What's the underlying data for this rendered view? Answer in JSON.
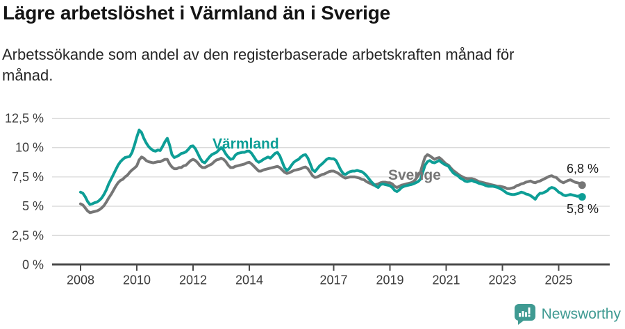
{
  "header": {
    "title": "Lägre arbetslöshet i Värmland än i Sverige",
    "subtitle": "Arbetssökande som andel av den registerbaserade arbetskraften månad för\nmånad."
  },
  "chart_data": {
    "type": "line",
    "title": "Lägre arbetslöshet i Värmland än i Sverige",
    "unit": "%",
    "grid": true,
    "legend_position": "inline-labels",
    "x_axis": {
      "start_year": 2008,
      "end_year_fraction": 2025.92,
      "tick_years": [
        2008,
        2010,
        2012,
        2014,
        2017,
        2019,
        2021,
        2023,
        2025
      ],
      "tick_labels": [
        "2008",
        "2010",
        "2012",
        "2014",
        "2017",
        "2019",
        "2021",
        "2023",
        "2025"
      ]
    },
    "y_axis": {
      "range": [
        0,
        12.5
      ],
      "tick_values": [
        0,
        2.5,
        5,
        7.5,
        10,
        12.5
      ],
      "tick_labels": [
        "0 %",
        "2,5 %",
        "5 %",
        "7,5 %",
        "10 %",
        "12,5 %"
      ]
    },
    "series": [
      {
        "name": "Värmland",
        "color": "#0D9E96",
        "end_label": "5,8 %",
        "start_year": 2008,
        "monthly_values": [
          6.2,
          6.1,
          5.8,
          5.4,
          5.15,
          5.2,
          5.3,
          5.35,
          5.5,
          5.7,
          6.0,
          6.4,
          6.9,
          7.3,
          7.7,
          8.1,
          8.5,
          8.8,
          9.0,
          9.15,
          9.2,
          9.25,
          9.6,
          10.2,
          10.9,
          11.5,
          11.3,
          10.8,
          10.4,
          10.1,
          9.9,
          9.75,
          9.7,
          9.8,
          9.75,
          10.1,
          10.5,
          10.8,
          10.2,
          9.4,
          9.15,
          9.25,
          9.35,
          9.5,
          9.55,
          9.65,
          9.85,
          10.1,
          10.15,
          9.9,
          9.5,
          9.1,
          8.8,
          8.7,
          8.95,
          9.2,
          9.4,
          9.5,
          9.6,
          9.8,
          10.0,
          9.8,
          9.45,
          9.2,
          9.0,
          9.05,
          9.35,
          9.5,
          9.55,
          9.6,
          9.6,
          9.7,
          9.7,
          9.5,
          9.2,
          8.9,
          8.75,
          8.85,
          9.0,
          9.1,
          9.2,
          9.1,
          9.3,
          9.5,
          9.6,
          9.3,
          8.8,
          8.3,
          8.05,
          8.2,
          8.5,
          8.75,
          8.9,
          9.0,
          9.2,
          9.35,
          9.4,
          9.1,
          8.6,
          8.1,
          7.95,
          8.2,
          8.45,
          8.6,
          8.8,
          9.0,
          9.1,
          9.05,
          9.05,
          8.9,
          8.5,
          8.1,
          7.8,
          7.7,
          7.85,
          7.95,
          8.0,
          8.0,
          8.05,
          8.0,
          7.95,
          7.8,
          7.6,
          7.35,
          7.1,
          6.9,
          6.7,
          6.6,
          6.85,
          6.9,
          6.85,
          6.8,
          6.75,
          6.6,
          6.35,
          6.25,
          6.4,
          6.6,
          6.7,
          6.75,
          6.8,
          6.85,
          6.9,
          7.0,
          7.1,
          7.3,
          7.9,
          8.5,
          8.8,
          8.9,
          8.75,
          8.7,
          8.8,
          8.9,
          8.75,
          8.6,
          8.5,
          8.4,
          8.1,
          7.85,
          7.7,
          7.6,
          7.4,
          7.3,
          7.15,
          7.1,
          7.15,
          7.2,
          7.1,
          7.05,
          6.95,
          6.9,
          6.85,
          6.75,
          6.7,
          6.7,
          6.7,
          6.65,
          6.6,
          6.5,
          6.4,
          6.25,
          6.1,
          6.05,
          6.0,
          6.0,
          6.05,
          6.1,
          6.2,
          6.15,
          6.05,
          6.0,
          5.9,
          5.75,
          5.6,
          5.9,
          6.1,
          6.1,
          6.2,
          6.3,
          6.5,
          6.6,
          6.55,
          6.4,
          6.2,
          6.1,
          5.95,
          5.9,
          5.95,
          6.0,
          5.95,
          5.9,
          5.85,
          5.9,
          5.8
        ]
      },
      {
        "name": "Sverige",
        "color": "#767676",
        "end_label": "6,8 %",
        "start_year": 2008,
        "monthly_values": [
          5.2,
          5.1,
          4.85,
          4.6,
          4.45,
          4.5,
          4.55,
          4.6,
          4.7,
          4.85,
          5.05,
          5.35,
          5.7,
          6.0,
          6.35,
          6.7,
          7.0,
          7.2,
          7.3,
          7.5,
          7.65,
          7.9,
          8.1,
          8.25,
          8.45,
          8.95,
          9.2,
          9.1,
          8.9,
          8.8,
          8.75,
          8.7,
          8.75,
          8.8,
          8.8,
          8.9,
          9.0,
          9.0,
          8.6,
          8.35,
          8.2,
          8.2,
          8.3,
          8.3,
          8.45,
          8.5,
          8.7,
          8.9,
          9.0,
          8.9,
          8.7,
          8.45,
          8.3,
          8.3,
          8.4,
          8.5,
          8.6,
          8.8,
          8.95,
          9.0,
          9.1,
          9.0,
          8.8,
          8.5,
          8.3,
          8.3,
          8.4,
          8.45,
          8.5,
          8.55,
          8.6,
          8.7,
          8.75,
          8.6,
          8.4,
          8.2,
          8.0,
          8.0,
          8.1,
          8.15,
          8.2,
          8.25,
          8.3,
          8.35,
          8.4,
          8.3,
          8.1,
          7.9,
          7.8,
          7.85,
          7.95,
          8.05,
          8.1,
          8.15,
          8.2,
          8.3,
          8.35,
          8.2,
          7.9,
          7.6,
          7.45,
          7.5,
          7.6,
          7.7,
          7.75,
          7.85,
          7.95,
          8.0,
          8.0,
          7.9,
          7.8,
          7.65,
          7.5,
          7.4,
          7.45,
          7.5,
          7.5,
          7.5,
          7.45,
          7.4,
          7.3,
          7.25,
          7.1,
          7.0,
          6.9,
          6.8,
          6.85,
          6.9,
          7.0,
          7.05,
          7.05,
          7.0,
          7.0,
          6.9,
          6.7,
          6.6,
          6.7,
          6.8,
          6.85,
          6.9,
          6.95,
          7.0,
          7.1,
          7.3,
          7.6,
          7.9,
          8.6,
          9.2,
          9.4,
          9.3,
          9.15,
          9.0,
          9.1,
          9.15,
          9.0,
          8.8,
          8.6,
          8.5,
          8.25,
          8.05,
          7.9,
          7.75,
          7.6,
          7.5,
          7.4,
          7.35,
          7.35,
          7.35,
          7.3,
          7.2,
          7.1,
          7.05,
          7.0,
          6.95,
          6.9,
          6.85,
          6.8,
          6.75,
          6.7,
          6.7,
          6.65,
          6.6,
          6.5,
          6.5,
          6.55,
          6.6,
          6.75,
          6.8,
          6.9,
          6.95,
          7.05,
          7.1,
          7.15,
          7.05,
          7.0,
          7.1,
          7.15,
          7.25,
          7.35,
          7.45,
          7.55,
          7.6,
          7.5,
          7.45,
          7.25,
          7.1,
          7.0,
          7.1,
          7.2,
          7.25,
          7.15,
          7.05,
          7.0,
          6.95,
          6.8
        ]
      }
    ],
    "colors": {
      "varmland": "#0D9E96",
      "sverige": "#767676",
      "gridline": "#DADADA",
      "axis": "#4A4A4A",
      "tick_text": "#3C3C3C"
    }
  },
  "footer": {
    "brand": "Newsworthy",
    "brand_color": "#3F9A92"
  }
}
